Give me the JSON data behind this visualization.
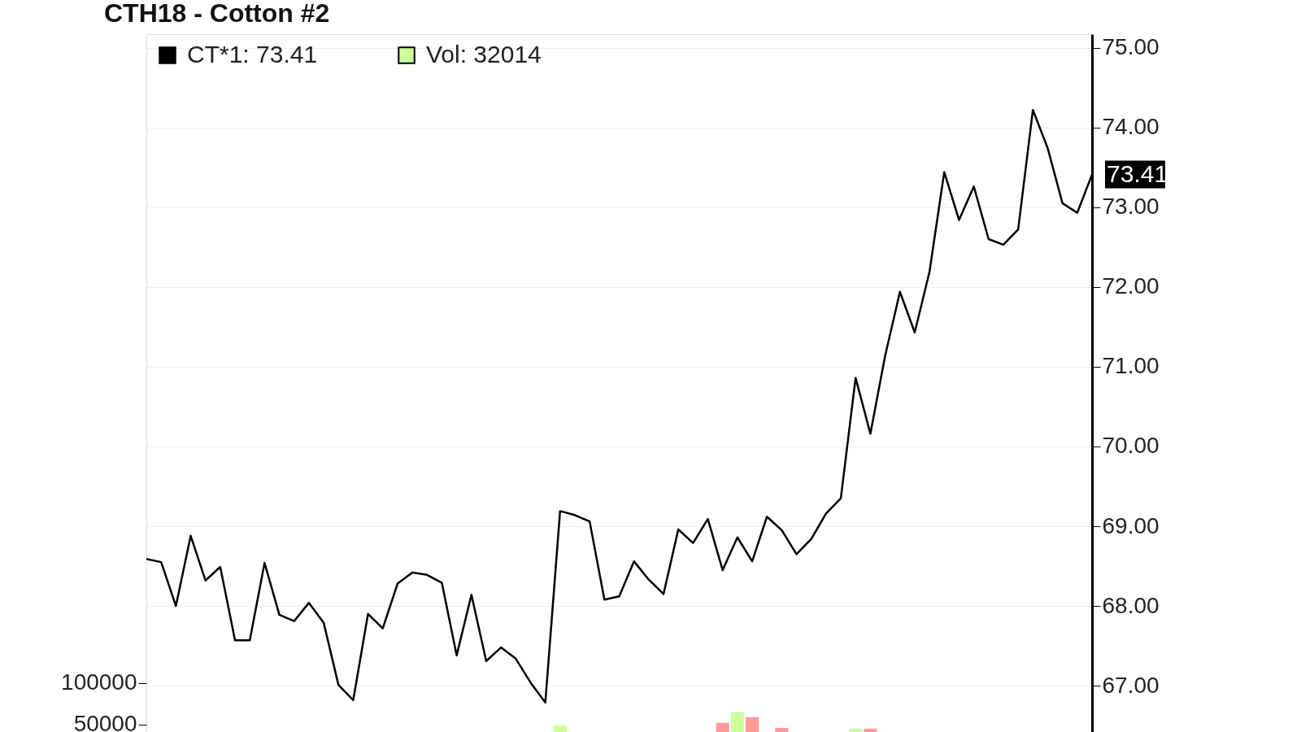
{
  "chart_data": {
    "type": "line",
    "title": "CTH18 - Cotton #2",
    "categories": [
      null,
      null,
      null,
      null,
      null,
      null,
      null,
      null,
      null,
      null,
      null,
      null,
      null,
      null,
      null,
      null,
      null,
      null,
      null,
      null,
      null,
      null,
      null,
      null,
      null,
      null,
      null,
      null,
      null,
      null,
      null,
      null,
      null,
      null,
      null,
      null,
      null,
      null,
      null,
      null,
      null,
      null,
      null,
      null,
      null,
      null,
      null,
      null,
      null,
      null,
      null,
      null,
      null,
      null,
      null,
      null,
      null,
      null,
      null,
      null,
      null,
      null,
      null,
      null,
      null
    ],
    "series": [
      {
        "name": "CT*1: 73.41",
        "color": "#000000",
        "values": [
          68.59,
          68.55,
          68.0,
          68.88,
          68.32,
          68.49,
          67.57,
          67.57,
          68.54,
          67.89,
          67.81,
          68.04,
          67.79,
          67.01,
          66.82,
          67.9,
          67.72,
          68.28,
          68.42,
          68.39,
          68.29,
          67.38,
          68.14,
          67.31,
          67.48,
          67.34,
          67.04,
          66.79,
          69.19,
          69.14,
          69.06,
          68.08,
          68.12,
          68.56,
          68.33,
          68.15,
          68.96,
          68.79,
          69.09,
          68.45,
          68.86,
          68.56,
          69.12,
          68.95,
          68.65,
          68.84,
          69.16,
          69.35,
          70.86,
          70.16,
          71.14,
          71.94,
          71.43,
          72.19,
          73.44,
          72.84,
          73.26,
          72.6,
          72.53,
          72.72,
          74.22,
          73.74,
          73.05,
          72.93,
          73.41
        ]
      },
      {
        "name": "Vol: 32014",
        "type": "bar",
        "axis": "y2",
        "color": "#ccff99",
        "values": [
          null,
          null,
          null,
          null,
          null,
          null,
          null,
          null,
          null,
          null,
          null,
          null,
          null,
          null,
          null,
          null,
          null,
          null,
          null,
          null,
          null,
          null,
          null,
          null,
          null,
          null,
          null,
          null,
          49000,
          null,
          null,
          null,
          null,
          null,
          null,
          null,
          null,
          null,
          null,
          52000,
          65000,
          59000,
          null,
          46000,
          null,
          null,
          null,
          null,
          45000,
          45000,
          null,
          null,
          null,
          null,
          null,
          null,
          null,
          null,
          null,
          null,
          null,
          null,
          null,
          null,
          null
        ],
        "colors": [
          null,
          null,
          null,
          null,
          null,
          null,
          null,
          null,
          null,
          null,
          null,
          null,
          null,
          null,
          null,
          null,
          null,
          null,
          null,
          null,
          null,
          null,
          null,
          null,
          null,
          null,
          null,
          null,
          "#ccff99",
          null,
          null,
          null,
          null,
          null,
          null,
          null,
          null,
          null,
          null,
          "#ff9999",
          "#ccff99",
          "#ff9999",
          null,
          "#ff9999",
          null,
          null,
          null,
          null,
          "#ccff99",
          "#ff9999",
          null,
          null,
          null,
          null,
          null,
          null,
          null,
          null,
          null,
          null,
          null,
          null,
          null,
          null,
          null
        ]
      }
    ],
    "ylim": [
      66.42,
      75.17
    ],
    "yticks": [
      {
        "value": 67,
        "label": "67.00"
      },
      {
        "value": 68,
        "label": "68.00"
      },
      {
        "value": 69,
        "label": "69.00"
      },
      {
        "value": 70,
        "label": "70.00"
      },
      {
        "value": 71,
        "label": "71.00"
      },
      {
        "value": 72,
        "label": "72.00"
      },
      {
        "value": 73,
        "label": "73.00"
      },
      {
        "value": 74,
        "label": "74.00"
      },
      {
        "value": 75,
        "label": "75.00"
      }
    ],
    "y2lim": [
      41000,
      882000
    ],
    "y2ticks": [
      50000,
      100000
    ],
    "grid": "y",
    "legend": "top left",
    "annotations": [
      "73.41"
    ]
  }
}
